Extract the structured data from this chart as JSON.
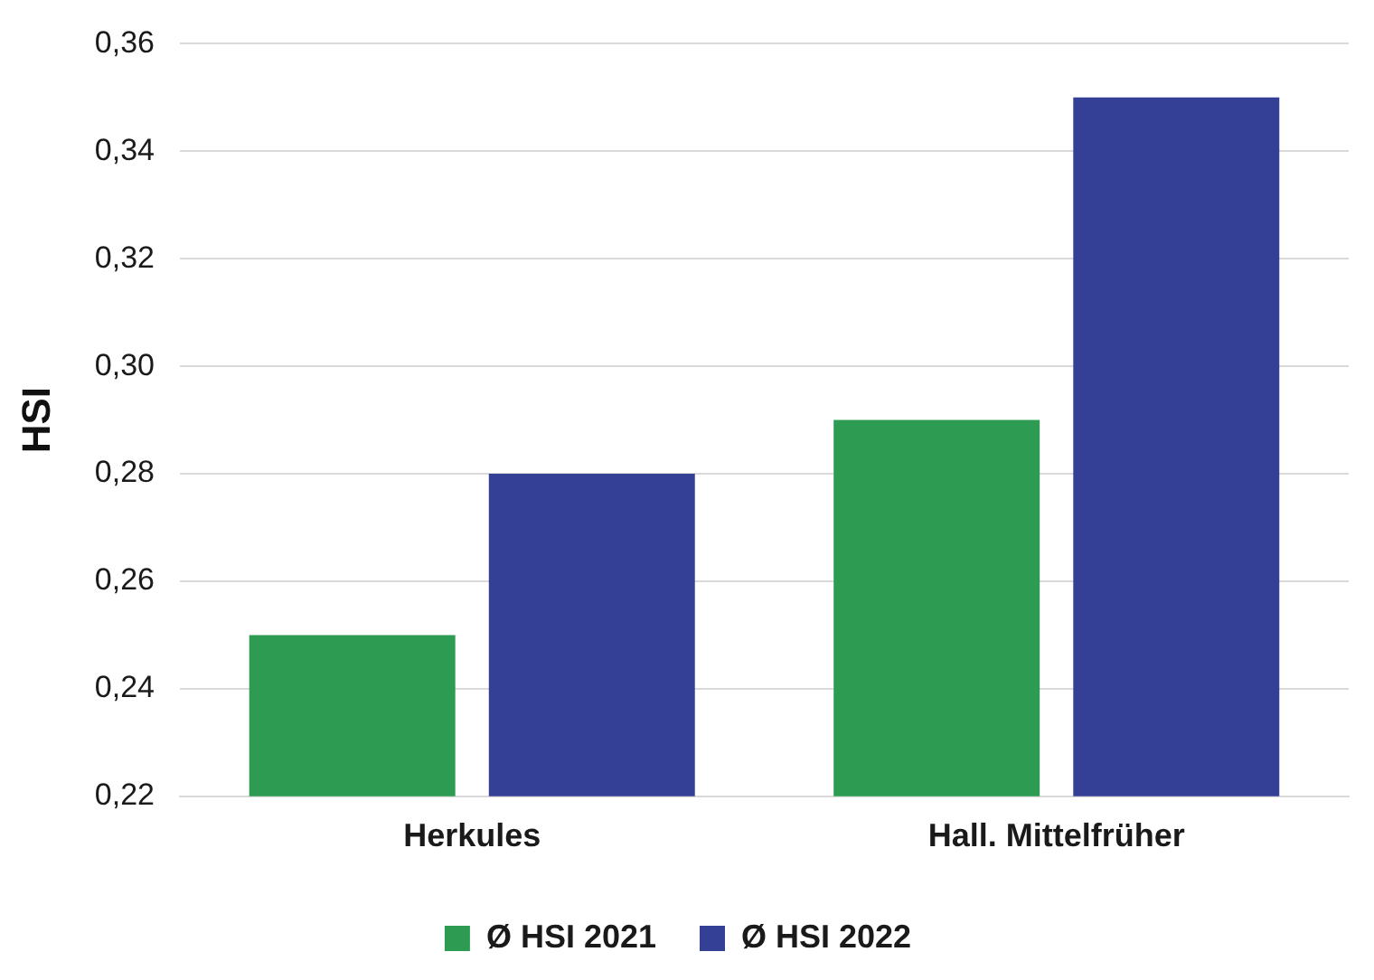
{
  "chart_data": {
    "type": "bar",
    "ylabel": "HSI",
    "categories": [
      "Herkules",
      "Hall. Mittelfrüher"
    ],
    "series": [
      {
        "name": "Ø HSI 2021",
        "color": "#2e9b52",
        "values": [
          0.25,
          0.29
        ]
      },
      {
        "name": "Ø HSI 2022",
        "color": "#343f96",
        "values": [
          0.28,
          0.35
        ]
      }
    ],
    "ylim": [
      0.22,
      0.36
    ],
    "yticks": [
      {
        "value": 0.22,
        "label": "0,22"
      },
      {
        "value": 0.24,
        "label": "0,24"
      },
      {
        "value": 0.26,
        "label": "0,26"
      },
      {
        "value": 0.28,
        "label": "0,28"
      },
      {
        "value": 0.3,
        "label": "0,30"
      },
      {
        "value": 0.32,
        "label": "0,32"
      },
      {
        "value": 0.34,
        "label": "0,34"
      },
      {
        "value": 0.36,
        "label": "0,36"
      }
    ],
    "grid": "y",
    "legend": "bottom"
  }
}
